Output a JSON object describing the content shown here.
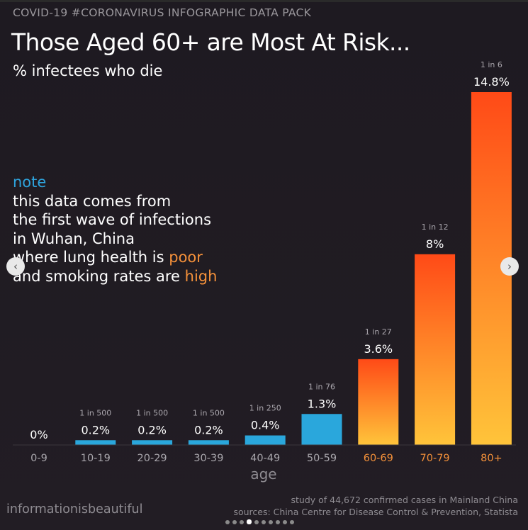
{
  "header": {
    "kicker": "COVID-19 #CORONAVIRUS INFOGRAPHIC DATA PACK",
    "title": "Those Aged 60+ are Most At Risk...",
    "subtitle": "% infectees who die"
  },
  "note": {
    "label": "note",
    "line1": "this data comes from",
    "line2": "the first wave of infections",
    "line3": "in Wuhan, China",
    "line4_prefix": "where lung health is ",
    "line4_accent": "poor",
    "line5_prefix": "and smoking rates are ",
    "line5_accent": "high"
  },
  "chart_data": {
    "type": "bar",
    "title": "Those Aged 60+ are Most At Risk...",
    "subtitle": "% infectees who die",
    "xlabel": "age",
    "ylabel": "",
    "categories": [
      "0-9",
      "10-19",
      "20-29",
      "30-39",
      "40-49",
      "50-59",
      "60-69",
      "70-79",
      "80+"
    ],
    "values": [
      0,
      0.2,
      0.2,
      0.2,
      0.4,
      1.3,
      3.6,
      8,
      14.8
    ],
    "value_labels": [
      "0%",
      "0.2%",
      "0.2%",
      "0.2%",
      "0.4%",
      "1.3%",
      "3.6%",
      "8%",
      "14.8%"
    ],
    "ratio_labels": [
      "",
      "1 in 500",
      "1 in 500",
      "1 in 500",
      "1 in 250",
      "1 in 76",
      "1 in 27",
      "1 in 12",
      "1 in 6"
    ],
    "highlight": [
      false,
      false,
      false,
      false,
      false,
      false,
      true,
      true,
      true
    ],
    "ylim": [
      0,
      14.8
    ],
    "grid": false,
    "colors": {
      "low": "#2aa7dc",
      "high_top": "#ff4a17",
      "high_bottom": "#ffc43a",
      "highlight_text": "#f5913a",
      "axis_text": "#a9a6ac"
    }
  },
  "footer": {
    "brand": "informationisbeautiful",
    "study": "study of 44,672 confirmed cases in Mainland China",
    "sources": "sources: China Centre for Disease Control & Prevention, Statista"
  },
  "carousel": {
    "prev_icon": "‹",
    "next_icon": "›",
    "page_count": 10,
    "active_page": 4
  }
}
